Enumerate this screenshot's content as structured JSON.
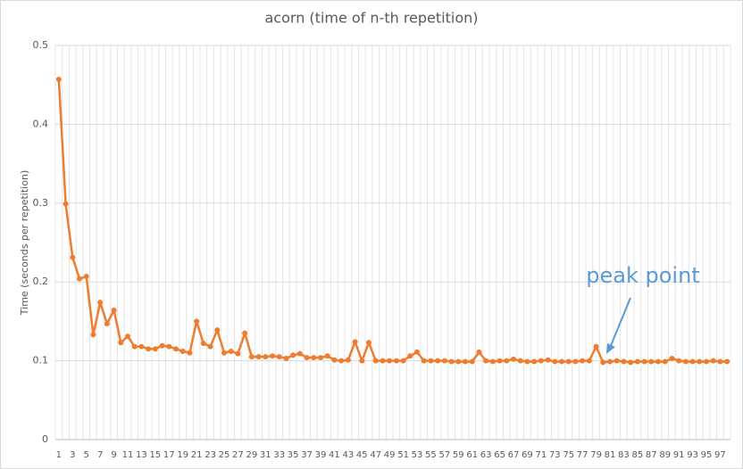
{
  "chart_data": {
    "type": "line",
    "title": "acorn (time of n-th repetition)",
    "y_label": "Time (seconds per repetition)",
    "annotation": "peak point",
    "categories": [
      "1",
      null,
      "3",
      null,
      "5",
      null,
      "7",
      null,
      "9",
      null,
      "11",
      null,
      "13",
      null,
      "15",
      null,
      "17",
      null,
      "19",
      null,
      "21",
      null,
      "23",
      null,
      "25",
      null,
      "27",
      null,
      "29",
      null,
      "31",
      null,
      "33",
      null,
      "35",
      null,
      "37",
      null,
      "39",
      null,
      "41",
      null,
      "43",
      null,
      "45",
      null,
      "47",
      null,
      "49",
      null,
      "51",
      null,
      "53",
      null,
      "55",
      null,
      "57",
      null,
      "59",
      null,
      "61",
      null,
      "63",
      null,
      "65",
      null,
      "67",
      null,
      "69",
      null,
      "71",
      null,
      "73",
      null,
      "75",
      null,
      "77",
      null,
      "79",
      null,
      "81",
      null,
      "83",
      null,
      "85",
      null,
      "87",
      null,
      "89",
      null,
      "91",
      null,
      "93",
      null,
      "95",
      null,
      "97",
      null
    ],
    "series": [
      {
        "name": "acorn",
        "color": "#ed7d31",
        "values": [
          0.457,
          0.299,
          0.231,
          0.204,
          0.207,
          0.133,
          0.174,
          0.147,
          0.164,
          0.123,
          0.131,
          0.118,
          0.118,
          0.115,
          0.115,
          0.119,
          0.118,
          0.115,
          0.112,
          0.11,
          0.15,
          0.122,
          0.118,
          0.139,
          0.11,
          0.112,
          0.109,
          0.135,
          0.105,
          0.105,
          0.105,
          0.106,
          0.105,
          0.103,
          0.107,
          0.109,
          0.104,
          0.104,
          0.104,
          0.106,
          0.101,
          0.1,
          0.101,
          0.124,
          0.1,
          0.123,
          0.1,
          0.1,
          0.1,
          0.1,
          0.1,
          0.106,
          0.111,
          0.1,
          0.1,
          0.1,
          0.1,
          0.099,
          0.099,
          0.099,
          0.099,
          0.111,
          0.1,
          0.099,
          0.1,
          0.1,
          0.102,
          0.1,
          0.099,
          0.099,
          0.1,
          0.101,
          0.099,
          0.099,
          0.099,
          0.099,
          0.1,
          0.1,
          0.118,
          0.098,
          0.099,
          0.1,
          0.099,
          0.098,
          0.099,
          0.099,
          0.099,
          0.099,
          0.099,
          0.103,
          0.1,
          0.099,
          0.099,
          0.099,
          0.099,
          0.1,
          0.099,
          0.099
        ]
      }
    ],
    "ylim": [
      0,
      0.5
    ],
    "yticks": [
      0,
      0.1,
      0.2,
      0.3,
      0.4,
      0.5
    ],
    "grid": true
  }
}
